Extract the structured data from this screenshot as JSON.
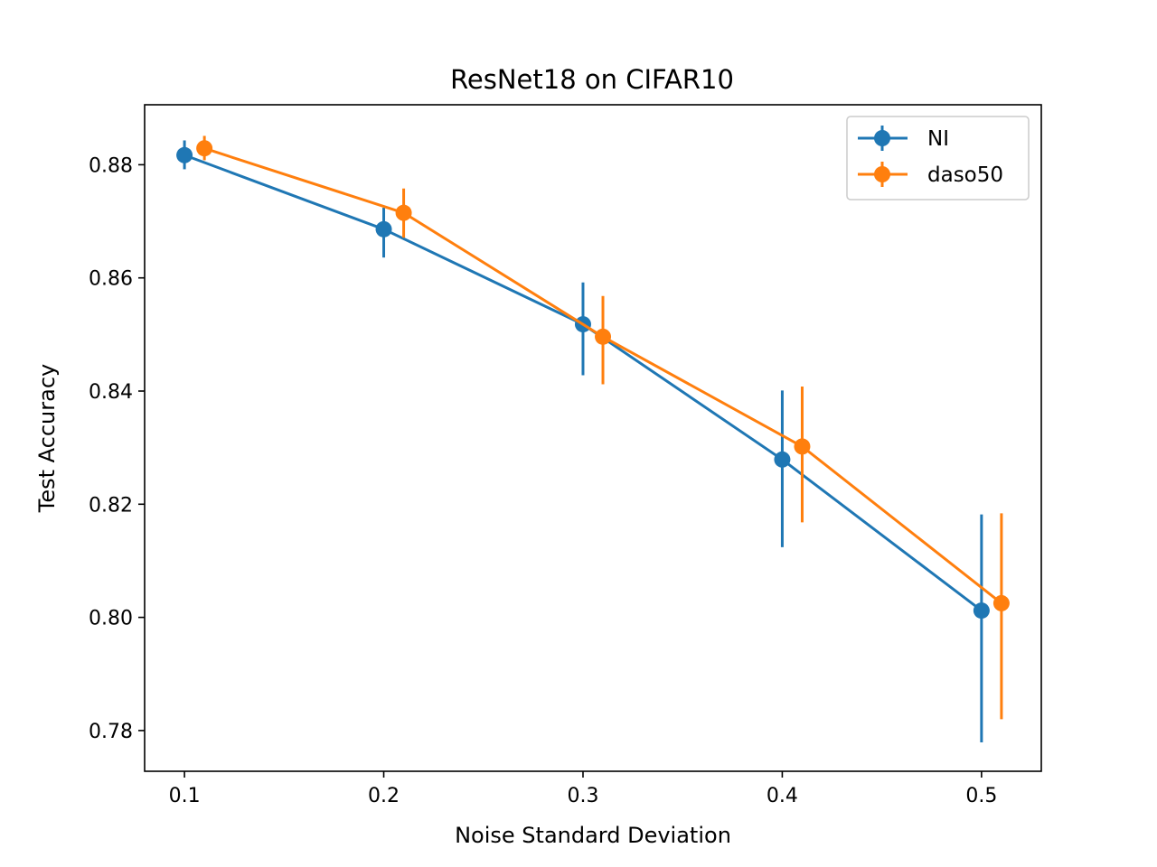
{
  "chart_data": {
    "type": "line",
    "title": "ResNet18 on CIFAR10",
    "xlabel": "Noise Standard Deviation",
    "ylabel": "Test Accuracy",
    "xlim": [
      0.08,
      0.53
    ],
    "ylim": [
      0.7728,
      0.8906
    ],
    "x_ticks": [
      0.1,
      0.2,
      0.3,
      0.4,
      0.5
    ],
    "x_tick_labels": [
      "0.1",
      "0.2",
      "0.3",
      "0.4",
      "0.5"
    ],
    "y_ticks": [
      0.78,
      0.8,
      0.82,
      0.84,
      0.86,
      0.88
    ],
    "y_tick_labels": [
      "0.78",
      "0.80",
      "0.82",
      "0.84",
      "0.86",
      "0.88"
    ],
    "grid": false,
    "legend_position": "top-right",
    "error_bars": true,
    "series": [
      {
        "name": "NI",
        "color": "#1f77b4",
        "x": [
          0.1,
          0.2,
          0.3,
          0.4,
          0.5
        ],
        "y": [
          0.8817,
          0.8686,
          0.8518,
          0.8279,
          0.8012
        ],
        "err_low": [
          0.8792,
          0.8636,
          0.8428,
          0.8124,
          0.7779
        ],
        "err_high": [
          0.8843,
          0.8724,
          0.8592,
          0.8401,
          0.8182
        ]
      },
      {
        "name": "daso50",
        "color": "#ff7f0e",
        "x": [
          0.11,
          0.21,
          0.31,
          0.41,
          0.51
        ],
        "y": [
          0.8829,
          0.8715,
          0.8496,
          0.8302,
          0.8025
        ],
        "err_low": [
          0.8808,
          0.8671,
          0.8412,
          0.8168,
          0.782
        ],
        "err_high": [
          0.8851,
          0.8758,
          0.8568,
          0.8408,
          0.8184
        ]
      }
    ]
  }
}
